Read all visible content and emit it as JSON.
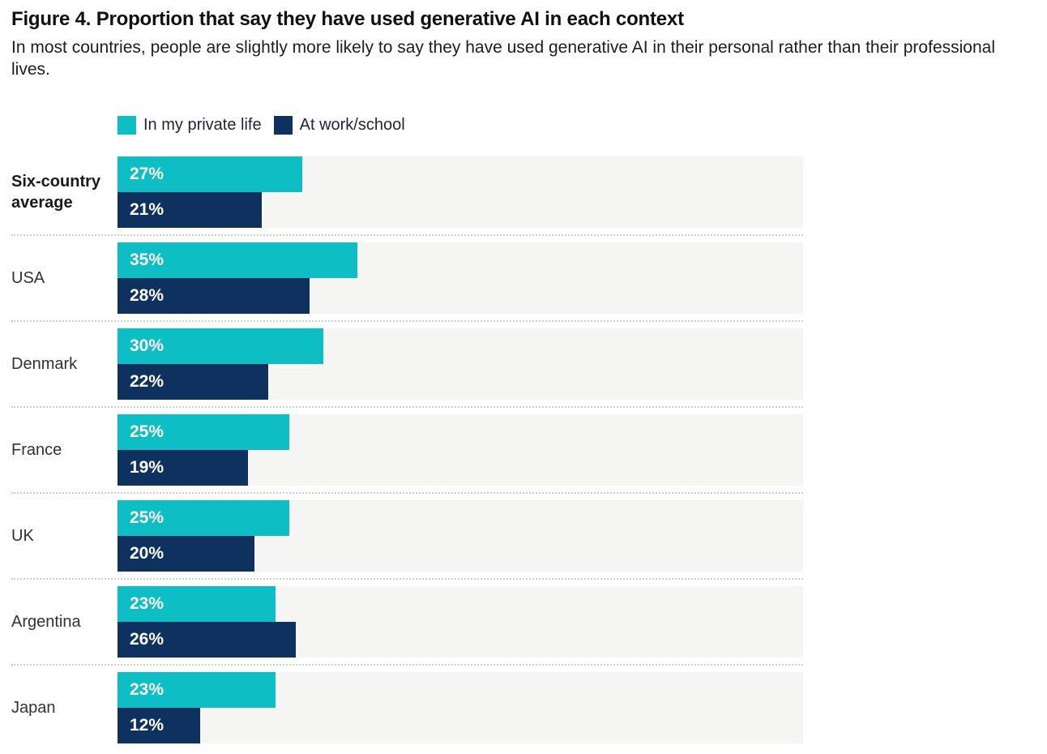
{
  "title": "Figure 4. Proportion that say they have used generative AI in each context",
  "subtitle": "In most countries, people are slightly more likely to say they have used generative AI in their personal rather than their professional lives.",
  "legend": [
    {
      "label": "In my private life",
      "color": "#0dbec4"
    },
    {
      "label": "At work/school",
      "color": "#0f3160"
    }
  ],
  "colors": {
    "private_life": "#0dbec4",
    "work_school": "#0f3160",
    "bar_track": "#f5f5f4",
    "separator": "#cdcdcd",
    "title_text": "#111111",
    "label_text": "#30303e"
  },
  "chart_data": {
    "type": "bar",
    "orientation": "horizontal",
    "title": "Figure 4. Proportion that say they have used generative AI in each context",
    "subtitle": "In most countries, people are slightly more likely to say they have used generative AI in their personal rather than their professional lives.",
    "categories": [
      "Six-country average",
      "USA",
      "Denmark",
      "France",
      "UK",
      "Argentina",
      "Japan"
    ],
    "series": [
      {
        "name": "In my private life",
        "color": "#0dbec4",
        "values": [
          27,
          35,
          30,
          25,
          25,
          23,
          23
        ]
      },
      {
        "name": "At work/school",
        "color": "#0f3160",
        "values": [
          21,
          28,
          22,
          19,
          20,
          26,
          12
        ]
      }
    ],
    "value_suffix": "%",
    "xlim": [
      0,
      100
    ],
    "grid": false,
    "legend_position": "top",
    "value_labels": "inside-start",
    "emphasized_category": "Six-country average"
  }
}
